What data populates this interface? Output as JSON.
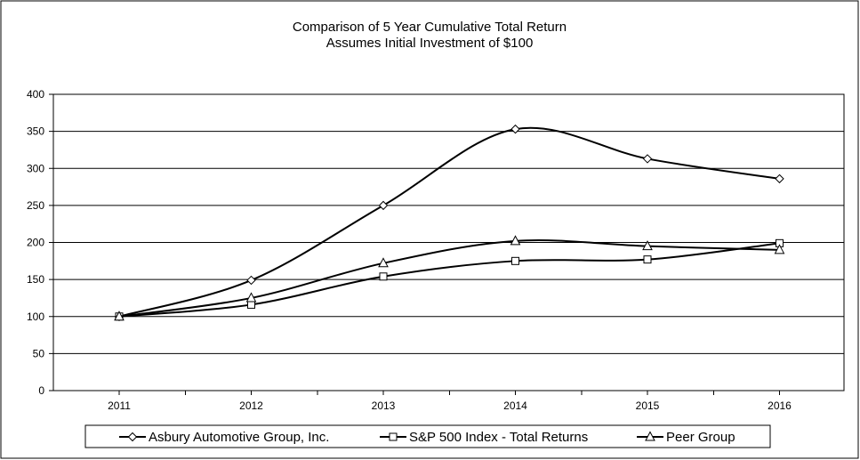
{
  "chart_data": {
    "type": "line",
    "title": "Comparison of 5 Year Cumulative Total Return",
    "subtitle": "Assumes Initial Investment of $100",
    "xlabel": "",
    "ylabel": "",
    "x": [
      "2011",
      "2012",
      "2013",
      "2014",
      "2015",
      "2016"
    ],
    "ylim": [
      0,
      400
    ],
    "yticks": [
      "0",
      "50",
      "100",
      "150",
      "200",
      "250",
      "300",
      "350",
      "400"
    ],
    "grid": "horizontal",
    "legend_position": "bottom",
    "series": [
      {
        "name": "Asbury Automotive Group, Inc.",
        "marker": "diamond",
        "values": [
          100,
          149,
          250,
          353,
          313,
          286
        ]
      },
      {
        "name": "S&P 500 Index - Total Returns",
        "marker": "square",
        "values": [
          100,
          116,
          154,
          175,
          177,
          199
        ]
      },
      {
        "name": "Peer Group",
        "marker": "triangle",
        "values": [
          100,
          125,
          172,
          202,
          195,
          190
        ]
      }
    ],
    "colors": {
      "line": "#000000",
      "marker_fill": "#ffffff",
      "grid": "#000000",
      "background": "#ffffff"
    }
  }
}
